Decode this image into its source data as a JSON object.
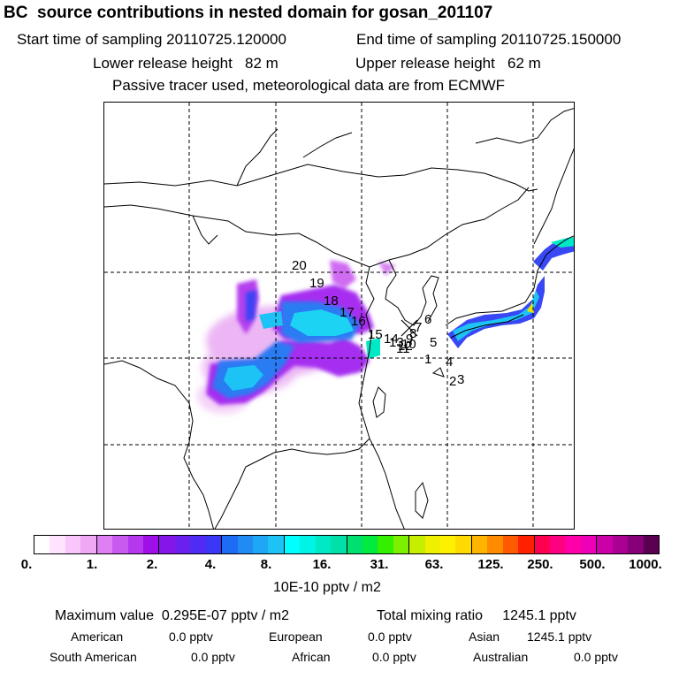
{
  "header": {
    "title": "BC  source contributions in nested domain for gosan_201107",
    "start_label": "Start time of sampling 20110725.120000",
    "end_label": "End time of sampling 20110725.150000",
    "lower_label": "Lower release height   82 m",
    "upper_label": "Upper release height   62 m",
    "note": "Passive tracer used, meteorological data are from ECMWF"
  },
  "map": {
    "release_labels": [
      "1",
      "2",
      "3",
      "4",
      "5",
      "6",
      "7",
      "8",
      "9",
      "10",
      "11",
      "12",
      "13",
      "14",
      "15",
      "16",
      "17",
      "18",
      "19",
      "20"
    ]
  },
  "colorbar": {
    "ticks": [
      "0.",
      "1.",
      "2.",
      "4.",
      "8.",
      "16.",
      "31.",
      "63.",
      "125.",
      "250.",
      "500.",
      "1000."
    ],
    "unit": "10E-10 pptv / m2",
    "colors": [
      [
        "#ffffff",
        "#ffe3ff",
        "#f9c6fb",
        "#f0a8f5"
      ],
      [
        "#de80f3",
        "#c95af0",
        "#b538ee",
        "#a10fe8"
      ],
      [
        "#8516e8",
        "#6a20ee",
        "#4f2bf3",
        "#3a38f6"
      ],
      [
        "#1f6cf4",
        "#1f8bf3",
        "#1ea7f5",
        "#1dc3f4"
      ],
      [
        "#00ffff",
        "#00f4e6",
        "#00e9c6",
        "#00e0a8"
      ],
      [
        "#00e070",
        "#00ea40",
        "#33f000",
        "#7df000"
      ],
      [
        "#c6ee00",
        "#eef000",
        "#fff000",
        "#ffda00"
      ],
      [
        "#ffb400",
        "#ff8c00",
        "#ff5a00",
        "#ff2000"
      ],
      [
        "#ff0050",
        "#ff0080",
        "#ff00a8",
        "#ee00b8"
      ],
      [
        "#cc00a8",
        "#aa0094",
        "#860078",
        "#5a0050"
      ]
    ]
  },
  "stats": {
    "maximum": "Maximum value  0.295E-07 pptv / m2",
    "total": "Total mixing ratio     1245.1 pptv",
    "american": "American",
    "american_val": "0.0 pptv",
    "european": "European",
    "european_val": "0.0 pptv",
    "asian": "Asian",
    "asian_val": "1245.1 pptv",
    "south_american": "South American",
    "south_american_val": "0.0 pptv",
    "african": "African",
    "african_val": "0.0 pptv",
    "australian": "Australian",
    "australian_val": "0.0 pptv"
  }
}
